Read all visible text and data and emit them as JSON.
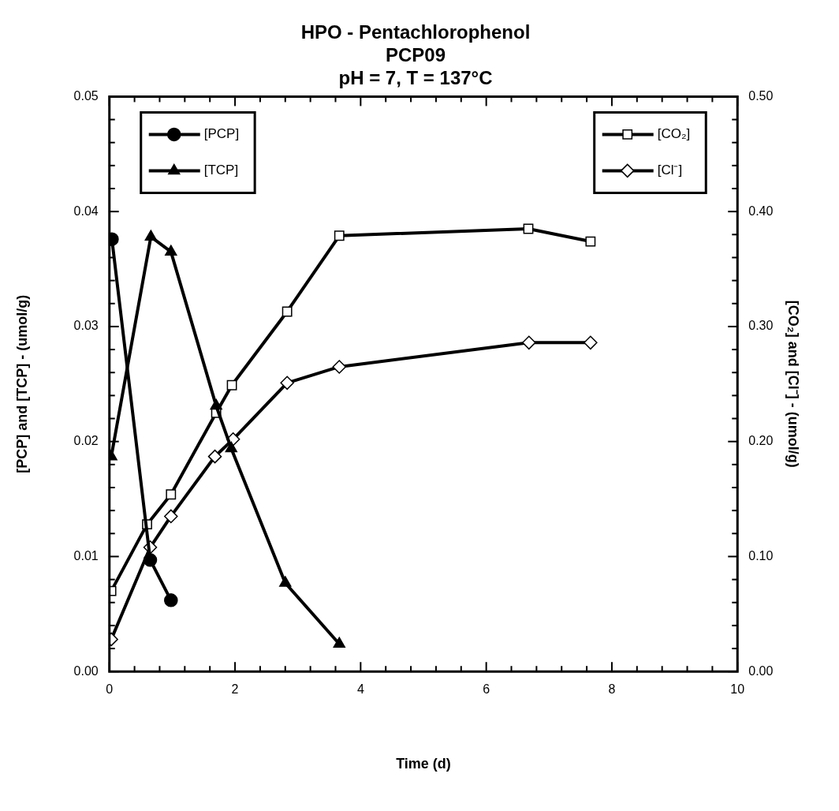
{
  "chart_data": {
    "type": "line",
    "title": "HPO - Pentachlorophenol\nPCP09\npH = 7, T = 137°C",
    "xlabel": "Time (d)",
    "ylabel": "[PCP] and [TCP] - (umol/g)",
    "y2label": "[CO₂] and [Cl⁻] - (umol/g)",
    "legend": "top left",
    "grid": false,
    "line_style": "solid",
    "xlim": [
      0,
      10
    ],
    "ylim": [
      0,
      0.05
    ],
    "y2lim": [
      0,
      0.5
    ],
    "xticks": [
      0,
      {
        "value": 0.4,
        "label": null
      },
      {
        "value": 0.8,
        "label": null
      },
      {
        "value": 1.2,
        "label": null
      },
      {
        "value": 1.6,
        "label": null
      },
      2,
      {
        "value": 2.4,
        "label": null
      },
      {
        "value": 2.8,
        "label": null
      },
      {
        "value": 3.2,
        "label": null
      },
      {
        "value": 3.6,
        "label": null
      },
      4,
      {
        "value": 4.4,
        "label": null
      },
      {
        "value": 4.8,
        "label": null
      },
      {
        "value": 5.2,
        "label": null
      },
      {
        "value": 5.6,
        "label": null
      },
      6,
      {
        "value": 6.4,
        "label": null
      },
      {
        "value": 6.8,
        "label": null
      },
      {
        "value": 7.2,
        "label": null
      },
      {
        "value": 7.6,
        "label": null
      },
      8,
      {
        "value": 8.4,
        "label": null
      },
      {
        "value": 8.8,
        "label": null
      },
      {
        "value": 9.2,
        "label": null
      },
      {
        "value": 9.6,
        "label": null
      },
      10
    ],
    "yticks": [
      {
        "value": 0,
        "label": "0.00"
      },
      {
        "value": 0.002,
        "label": null
      },
      {
        "value": 0.004,
        "label": null
      },
      {
        "value": 0.006,
        "label": null
      },
      {
        "value": 0.008,
        "label": null
      },
      {
        "value": 0.01,
        "label": "0.01"
      },
      {
        "value": 0.012,
        "label": null
      },
      {
        "value": 0.014,
        "label": null
      },
      {
        "value": 0.016,
        "label": null
      },
      {
        "value": 0.018,
        "label": null
      },
      {
        "value": 0.02,
        "label": "0.02"
      },
      {
        "value": 0.022,
        "label": null
      },
      {
        "value": 0.024,
        "label": null
      },
      {
        "value": 0.026,
        "label": null
      },
      {
        "value": 0.028,
        "label": null
      },
      {
        "value": 0.03,
        "label": "0.03"
      },
      {
        "value": 0.032,
        "label": null
      },
      {
        "value": 0.034,
        "label": null
      },
      {
        "value": 0.036,
        "label": null
      },
      {
        "value": 0.038,
        "label": null
      },
      {
        "value": 0.04,
        "label": "0.04"
      },
      {
        "value": 0.042,
        "label": null
      },
      {
        "value": 0.044,
        "label": null
      },
      {
        "value": 0.046,
        "label": null
      },
      {
        "value": 0.048,
        "label": null
      },
      {
        "value": 0.05,
        "label": "0.05"
      }
    ],
    "y2ticks": [
      {
        "value": 0,
        "label": "0.00"
      },
      {
        "value": 0.02,
        "label": null
      },
      {
        "value": 0.04,
        "label": null
      },
      {
        "value": 0.06,
        "label": null
      },
      {
        "value": 0.08,
        "label": null
      },
      {
        "value": 0.1,
        "label": "0.10"
      },
      {
        "value": 0.12,
        "label": null
      },
      {
        "value": 0.14,
        "label": null
      },
      {
        "value": 0.16,
        "label": null
      },
      {
        "value": 0.18,
        "label": null
      },
      {
        "value": 0.2,
        "label": "0.20"
      },
      {
        "value": 0.22,
        "label": null
      },
      {
        "value": 0.24,
        "label": null
      },
      {
        "value": 0.26,
        "label": null
      },
      {
        "value": 0.28,
        "label": null
      },
      {
        "value": 0.3,
        "label": "0.30"
      },
      {
        "value": 0.32,
        "label": null
      },
      {
        "value": 0.34,
        "label": null
      },
      {
        "value": 0.36,
        "label": null
      },
      {
        "value": 0.38,
        "label": null
      },
      {
        "value": 0.4,
        "label": "0.40"
      },
      {
        "value": 0.42,
        "label": null
      },
      {
        "value": 0.44,
        "label": null
      },
      {
        "value": 0.46,
        "label": null
      },
      {
        "value": 0.48,
        "label": null
      },
      {
        "value": 0.5,
        "label": "0.50"
      }
    ],
    "series": [
      {
        "name": "[PCP]",
        "color": "#000000",
        "marker": "circle",
        "axis": "y",
        "x": [
          0.04,
          0.65,
          0.98
        ],
        "values": [
          0.0376,
          0.0097,
          0.0062
        ]
      },
      {
        "name": "[TCP]",
        "color": "#000000",
        "marker": "triangle",
        "axis": "y",
        "x": [
          0.03,
          0.66,
          0.98,
          1.7,
          1.94,
          2.8,
          3.66
        ],
        "values": [
          0.0187,
          0.0378,
          0.0365,
          0.0231,
          0.0194,
          0.0077,
          0.0024
        ]
      },
      {
        "name": "[CO₂]",
        "color": "#000000",
        "marker": "square",
        "axis": "y2",
        "x": [
          0.03,
          0.6,
          0.98,
          1.7,
          1.95,
          2.83,
          3.66,
          6.67,
          7.66
        ],
        "values": [
          0.07,
          0.128,
          0.154,
          0.225,
          0.249,
          0.313,
          0.379,
          0.385,
          0.374
        ]
      },
      {
        "name": "[Cl⁻]",
        "color": "#000000",
        "marker": "diamond",
        "axis": "y2",
        "x": [
          0.03,
          0.65,
          0.98,
          1.68,
          1.97,
          2.83,
          3.66,
          6.68,
          7.66
        ],
        "values": [
          0.028,
          0.108,
          0.135,
          0.187,
          0.202,
          0.251,
          0.265,
          0.286,
          0.286
        ]
      }
    ]
  }
}
